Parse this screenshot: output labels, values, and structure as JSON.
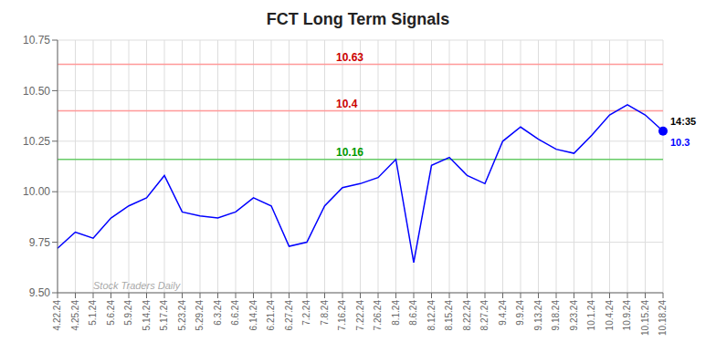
{
  "chart_data": {
    "type": "line",
    "title": "FCT Long Term Signals",
    "categories": [
      "4.22.24",
      "4.25.24",
      "5.1.24",
      "5.6.24",
      "5.9.24",
      "5.14.24",
      "5.17.24",
      "5.23.24",
      "5.29.24",
      "6.3.24",
      "6.6.24",
      "6.14.24",
      "6.21.24",
      "6.27.24",
      "7.2.24",
      "7.8.24",
      "7.16.24",
      "7.22.24",
      "7.26.24",
      "8.1.24",
      "8.6.24",
      "8.12.24",
      "8.15.24",
      "8.22.24",
      "8.27.24",
      "9.4.24",
      "9.9.24",
      "9.13.24",
      "9.18.24",
      "9.23.24",
      "10.1.24",
      "10.4.24",
      "10.9.24",
      "10.15.24",
      "10.18.24"
    ],
    "values": [
      9.72,
      9.8,
      9.77,
      9.87,
      9.93,
      9.97,
      10.08,
      9.9,
      9.88,
      9.87,
      9.9,
      9.97,
      9.93,
      9.73,
      9.75,
      9.93,
      10.02,
      10.04,
      10.07,
      10.16,
      9.65,
      10.13,
      10.17,
      10.08,
      10.04,
      10.25,
      10.32,
      10.26,
      10.21,
      10.19,
      10.28,
      10.38,
      10.43,
      10.38,
      10.3
    ],
    "color": "blue",
    "ylim": [
      9.5,
      10.75
    ],
    "yticks": [
      {
        "value": 9.5,
        "label": "9.50"
      },
      9.75,
      {
        "value": 10.0,
        "label": "10.00"
      },
      10.25,
      {
        "value": 10.5,
        "label": "10.50"
      },
      10.75
    ],
    "grid": true,
    "hlines": [
      {
        "value": 10.63,
        "label": "10.63",
        "color": "#ff9999",
        "label_color": "#cc0000"
      },
      {
        "value": 10.4,
        "label": "10.4",
        "color": "#ff9999",
        "label_color": "#cc0000"
      },
      {
        "value": 10.16,
        "label": "10.16",
        "color": "#66cc66",
        "label_color": "#009900"
      }
    ],
    "last_point": {
      "value": 10.3,
      "label": "10.3",
      "time_label": "14:35",
      "color": "blue"
    },
    "watermark": "Stock Traders Daily"
  }
}
